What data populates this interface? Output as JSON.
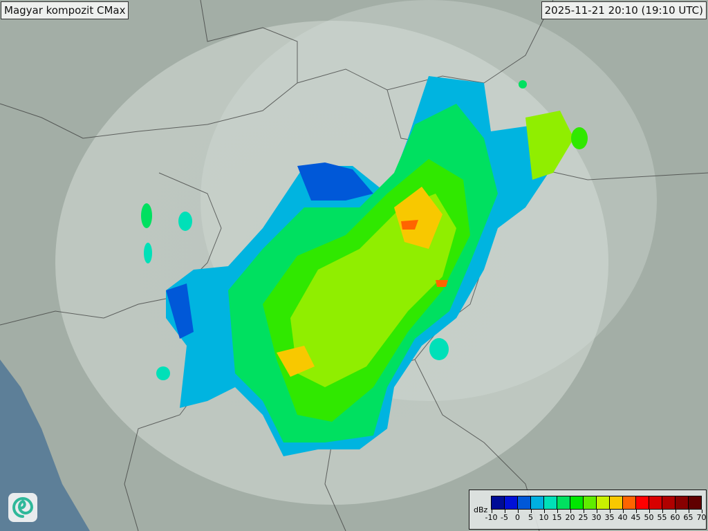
{
  "title": "Magyar kompozit  CMax",
  "timestamp": "2025-11-21 20:10 (19:10 UTC)",
  "logo_icon": "swirl-logo-icon",
  "legend": {
    "unit": "dBz",
    "ticks": [
      "-10",
      "-5",
      "0",
      "5",
      "10",
      "15",
      "20",
      "25",
      "30",
      "35",
      "40",
      "45",
      "50",
      "55",
      "60",
      "65",
      "70"
    ],
    "colors": [
      "#000c96",
      "#0010d8",
      "#0058d8",
      "#00b0e0",
      "#00e0b8",
      "#00e060",
      "#00e800",
      "#60ec00",
      "#c8f000",
      "#f8c800",
      "#ff6400",
      "#ff0000",
      "#d80000",
      "#b00000",
      "#880000",
      "#600000"
    ]
  }
}
